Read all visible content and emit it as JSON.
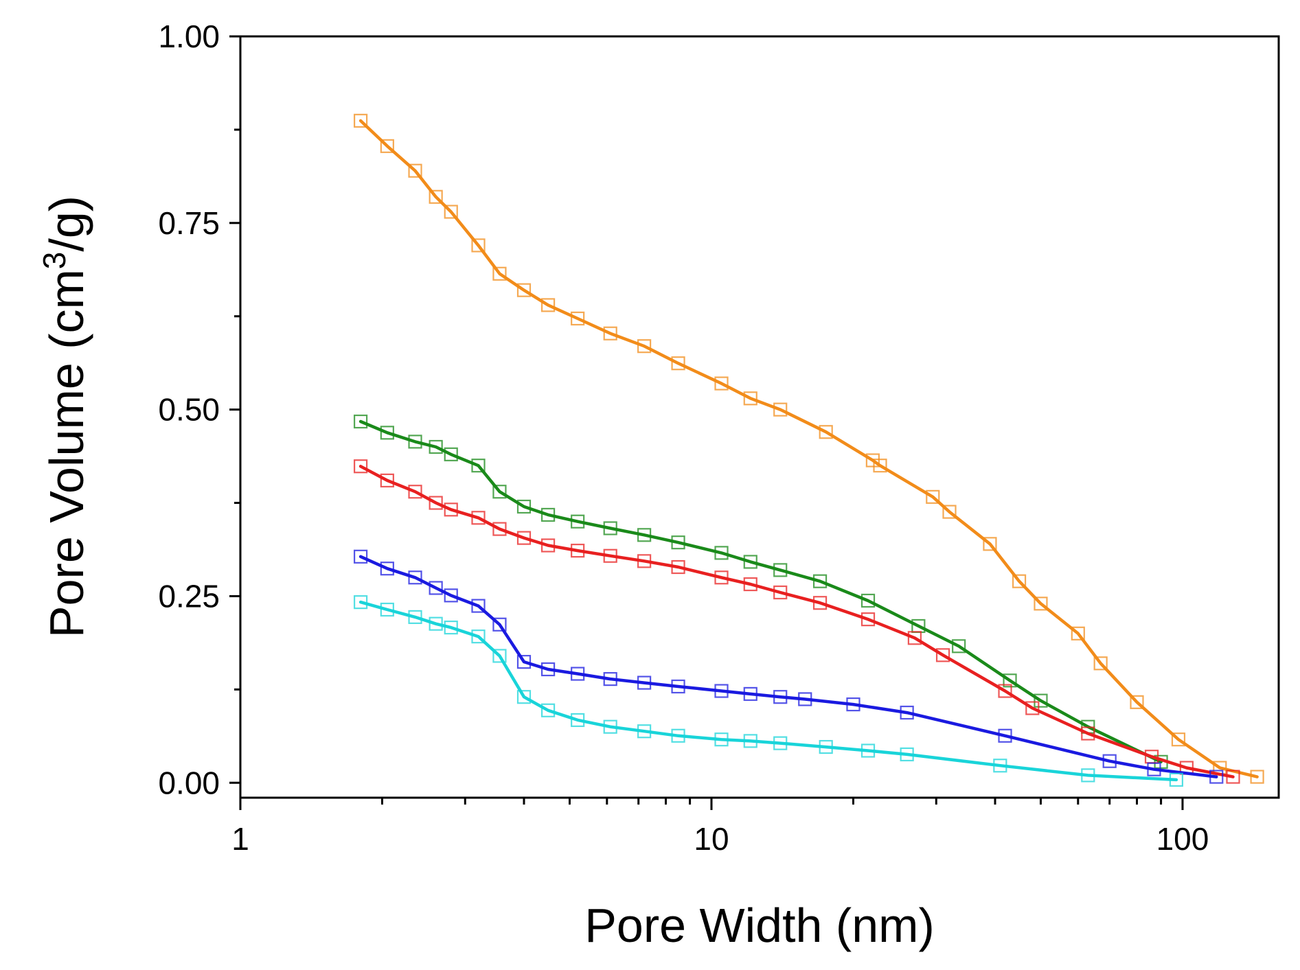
{
  "chart_data": {
    "type": "line",
    "title": "",
    "xlabel": "Pore Width (nm)",
    "ylabel_prefix": "Pore Volume (cm",
    "ylabel_sup": "3",
    "ylabel_suffix": "/g)",
    "xscale": "log",
    "xlim": [
      1,
      160
    ],
    "ylim": [
      -0.02,
      1.0
    ],
    "x_ticks": [
      1,
      10,
      100
    ],
    "x_tick_labels": [
      "1",
      "10",
      "100"
    ],
    "y_ticks": [
      0.0,
      0.25,
      0.5,
      0.75,
      1.0
    ],
    "y_tick_labels": [
      "0.00",
      "0.25",
      "0.50",
      "0.75",
      "1.00"
    ],
    "grid": false,
    "legend": "none",
    "marker": "open-square",
    "series": [
      {
        "name": "orange",
        "color": "#f28c1a",
        "x": [
          1.8,
          2.05,
          2.35,
          2.6,
          2.8,
          3.2,
          3.55,
          4.0,
          4.5,
          5.2,
          6.1,
          7.2,
          8.5,
          10.5,
          12.1,
          14.0,
          17.5,
          22.0,
          22.8,
          29.5,
          32.0,
          39.0,
          45.0,
          50.0,
          60.0,
          67.0,
          80.0,
          98.0,
          120.0,
          144.0
        ],
        "y": [
          0.887,
          0.853,
          0.82,
          0.785,
          0.765,
          0.72,
          0.682,
          0.66,
          0.64,
          0.622,
          0.602,
          0.585,
          0.562,
          0.535,
          0.515,
          0.5,
          0.47,
          0.432,
          0.425,
          0.383,
          0.363,
          0.32,
          0.27,
          0.24,
          0.2,
          0.16,
          0.108,
          0.058,
          0.02,
          0.008
        ]
      },
      {
        "name": "green",
        "color": "#1a8a1a",
        "x": [
          1.8,
          2.05,
          2.35,
          2.6,
          2.8,
          3.2,
          3.55,
          4.0,
          4.5,
          5.2,
          6.1,
          7.2,
          8.5,
          10.5,
          12.1,
          14.0,
          17.0,
          21.5,
          27.5,
          33.5,
          43.0,
          50.0,
          63.0,
          90.0
        ],
        "y": [
          0.484,
          0.469,
          0.457,
          0.45,
          0.44,
          0.425,
          0.39,
          0.37,
          0.359,
          0.35,
          0.341,
          0.332,
          0.322,
          0.308,
          0.296,
          0.285,
          0.27,
          0.244,
          0.21,
          0.183,
          0.137,
          0.11,
          0.075,
          0.028
        ]
      },
      {
        "name": "red",
        "color": "#e82020",
        "x": [
          1.8,
          2.05,
          2.35,
          2.6,
          2.8,
          3.2,
          3.55,
          4.0,
          4.5,
          5.2,
          6.1,
          7.2,
          8.5,
          10.5,
          12.1,
          14.0,
          17.0,
          21.5,
          27.0,
          31.0,
          42.0,
          48.0,
          63.0,
          86.0,
          102.0,
          128.0
        ],
        "y": [
          0.424,
          0.405,
          0.39,
          0.375,
          0.366,
          0.355,
          0.34,
          0.328,
          0.318,
          0.311,
          0.304,
          0.297,
          0.289,
          0.275,
          0.266,
          0.255,
          0.241,
          0.219,
          0.194,
          0.171,
          0.123,
          0.1,
          0.066,
          0.035,
          0.02,
          0.008
        ]
      },
      {
        "name": "blue",
        "color": "#1a1ae0",
        "x": [
          1.8,
          2.05,
          2.35,
          2.6,
          2.8,
          3.2,
          3.55,
          4.0,
          4.5,
          5.2,
          6.1,
          7.2,
          8.5,
          10.5,
          12.1,
          14.0,
          15.8,
          20.0,
          26.0,
          42.0,
          70.0,
          87.0,
          118.0
        ],
        "y": [
          0.303,
          0.287,
          0.275,
          0.261,
          0.251,
          0.237,
          0.212,
          0.162,
          0.152,
          0.146,
          0.139,
          0.134,
          0.129,
          0.123,
          0.119,
          0.115,
          0.112,
          0.105,
          0.094,
          0.063,
          0.029,
          0.018,
          0.008
        ]
      },
      {
        "name": "cyan",
        "color": "#19d4d9",
        "x": [
          1.8,
          2.05,
          2.35,
          2.6,
          2.8,
          3.2,
          3.55,
          4.0,
          4.5,
          5.2,
          6.1,
          7.2,
          8.5,
          10.5,
          12.1,
          14.0,
          17.5,
          21.5,
          26.0,
          41.0,
          63.0,
          97.0
        ],
        "y": [
          0.242,
          0.232,
          0.222,
          0.213,
          0.208,
          0.196,
          0.17,
          0.115,
          0.097,
          0.084,
          0.075,
          0.069,
          0.063,
          0.058,
          0.056,
          0.053,
          0.048,
          0.043,
          0.038,
          0.023,
          0.01,
          0.004
        ]
      }
    ]
  }
}
